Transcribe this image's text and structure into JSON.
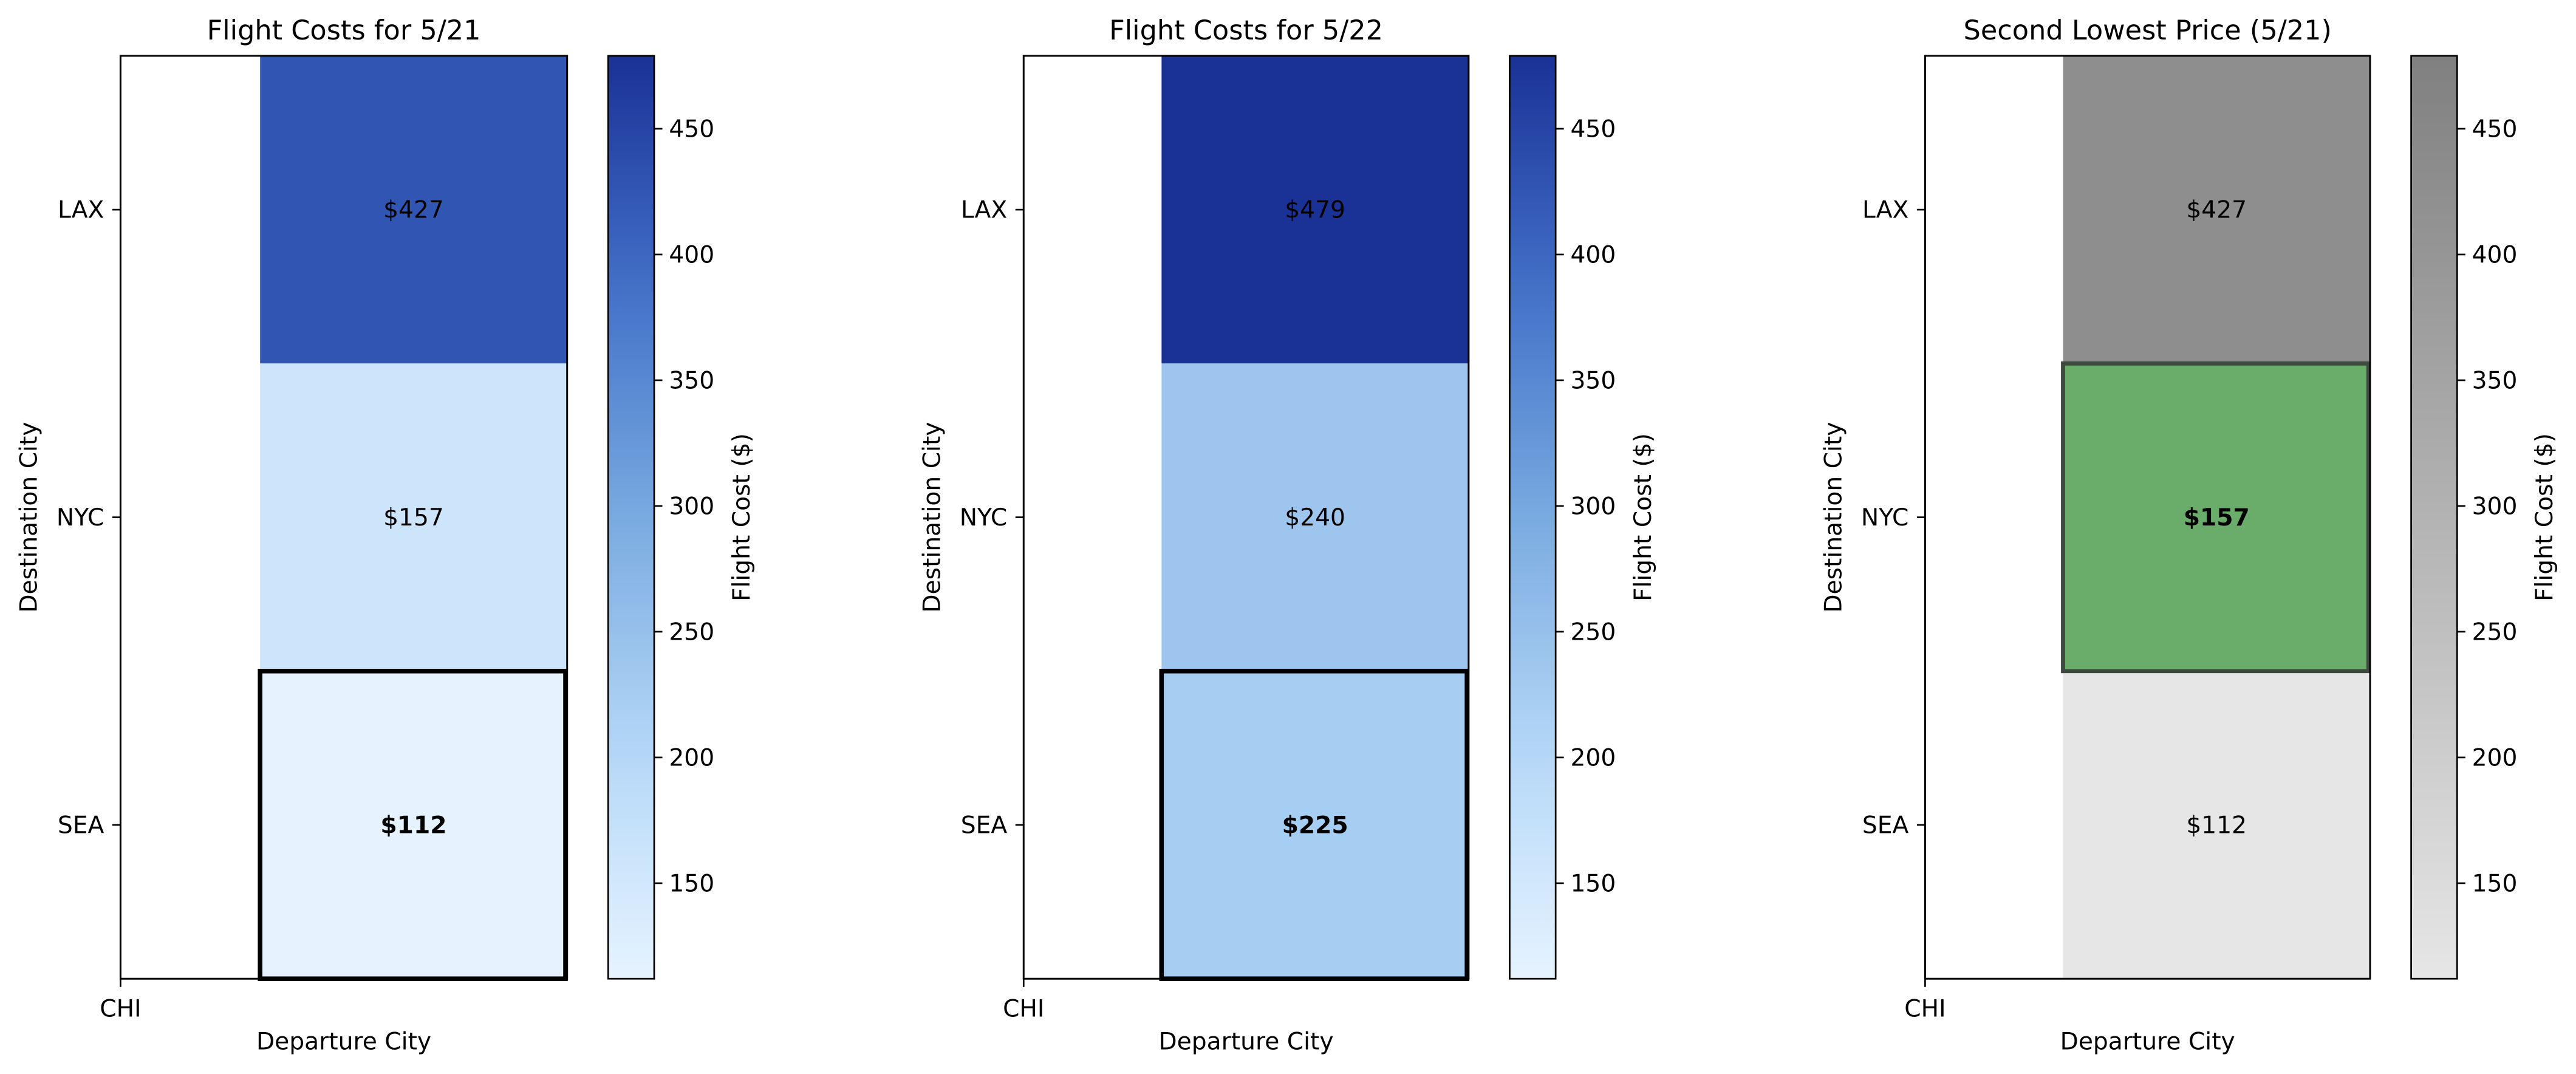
{
  "chart_data": [
    {
      "type": "heatmap",
      "title": "Flight Costs for 5/21",
      "xlabel": "Departure City",
      "ylabel": "Destination City",
      "x_categories": [
        "CHI"
      ],
      "y_categories": [
        "LAX",
        "NYC",
        "SEA"
      ],
      "values": [
        427,
        157,
        112
      ],
      "labels": [
        "$427",
        "$157",
        "$112"
      ],
      "highlight": "SEA",
      "highlight_style": "bold black outline",
      "colormap": "Blues",
      "colorbar": {
        "label": "Flight Cost ($)",
        "range": [
          112,
          479
        ],
        "ticks": [
          150,
          200,
          250,
          300,
          350,
          400,
          450
        ]
      }
    },
    {
      "type": "heatmap",
      "title": "Flight Costs for 5/22",
      "xlabel": "Departure City",
      "ylabel": "Destination City",
      "x_categories": [
        "CHI"
      ],
      "y_categories": [
        "LAX",
        "NYC",
        "SEA"
      ],
      "values": [
        479,
        240,
        225
      ],
      "labels": [
        "$479",
        "$240",
        "$225"
      ],
      "highlight": "SEA",
      "highlight_style": "bold black outline",
      "colormap": "Blues",
      "colorbar": {
        "label": "Flight Cost ($)",
        "range": [
          112,
          479
        ],
        "ticks": [
          150,
          200,
          250,
          300,
          350,
          400,
          450
        ]
      }
    },
    {
      "type": "heatmap",
      "title": "Second Lowest Price (5/21)",
      "xlabel": "Departure City",
      "ylabel": "Destination City",
      "x_categories": [
        "CHI"
      ],
      "y_categories": [
        "LAX",
        "NYC",
        "SEA"
      ],
      "values": [
        427,
        157,
        112
      ],
      "labels": [
        "$427",
        "$157",
        "$112"
      ],
      "highlight": "NYC",
      "highlight_style": "green fill with dark outline",
      "highlight_color": "#6aac6a",
      "colormap": "Greys",
      "colorbar": {
        "label": "Flight Cost ($)",
        "range": [
          112,
          479
        ],
        "ticks": [
          150,
          200,
          250,
          300,
          350,
          400,
          450
        ]
      }
    }
  ]
}
